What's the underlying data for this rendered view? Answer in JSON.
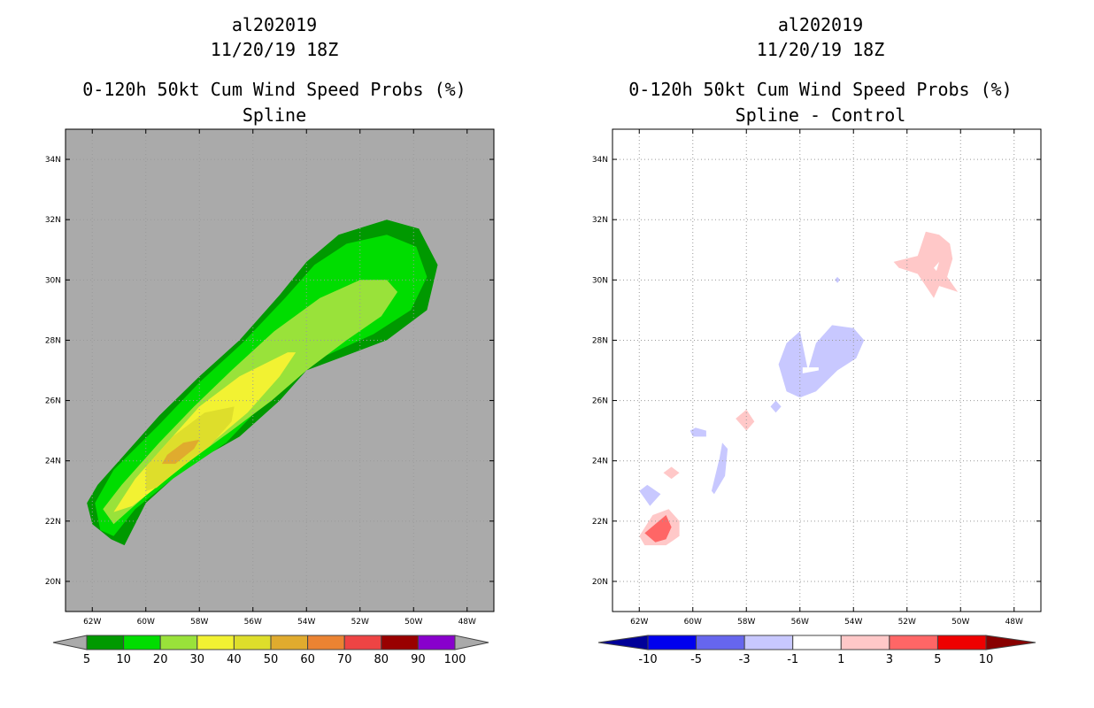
{
  "panels": [
    {
      "title_lines": [
        "al202019",
        "11/20/19 18Z",
        "0-120h 50kt Cum Wind Speed Probs (%)",
        "Spline"
      ],
      "background": "#aaaaaa"
    },
    {
      "title_lines": [
        "al202019",
        "11/20/19 18Z",
        "0-120h 50kt Cum Wind Speed Probs (%)",
        "Spline - Control"
      ],
      "background": "#ffffff"
    }
  ],
  "chart_data": [
    {
      "type": "heatmap",
      "title": "0-120h 50kt Cum Wind Speed Probs (%)",
      "subtitle": "Spline",
      "storm": "al202019",
      "datetime": "11/20/19 18Z",
      "xlim": [
        -63,
        -47
      ],
      "ylim": [
        19,
        35
      ],
      "x_ticks": [
        -62,
        -60,
        -58,
        -56,
        -54,
        -52,
        -50,
        -48
      ],
      "x_tick_labels": [
        "62W",
        "60W",
        "58W",
        "56W",
        "54W",
        "52W",
        "50W",
        "48W"
      ],
      "y_ticks": [
        20,
        22,
        24,
        26,
        28,
        30,
        32,
        34
      ],
      "y_tick_labels": [
        "20N",
        "22N",
        "24N",
        "26N",
        "28N",
        "30N",
        "32N",
        "34N"
      ],
      "grid": true,
      "colorbar": {
        "levels": [
          "5",
          "10",
          "20",
          "30",
          "40",
          "50",
          "60",
          "70",
          "80",
          "90",
          "100"
        ],
        "colors": [
          "#009900",
          "#00dd00",
          "#99e23a",
          "#f2f232",
          "#dede2b",
          "#e0ab2e",
          "#eb8332",
          "#ee4444",
          "#990000",
          "#8800cc"
        ],
        "under_color": "#aaaaaa",
        "over_color": "#aaaaaa"
      },
      "contours": [
        {
          "level": "5-10",
          "color": "#009900",
          "polygon": [
            [
              -62.2,
              22.6
            ],
            [
              -61.8,
              23.2
            ],
            [
              -61.0,
              24.0
            ],
            [
              -59.5,
              25.5
            ],
            [
              -58.0,
              26.8
            ],
            [
              -56.5,
              28.0
            ],
            [
              -55.0,
              29.5
            ],
            [
              -54.0,
              30.6
            ],
            [
              -52.8,
              31.5
            ],
            [
              -51.0,
              32.0
            ],
            [
              -49.8,
              31.7
            ],
            [
              -49.1,
              30.5
            ],
            [
              -49.5,
              29.0
            ],
            [
              -51.0,
              28.0
            ],
            [
              -52.5,
              27.5
            ],
            [
              -54.0,
              27.0
            ],
            [
              -55.0,
              26.0
            ],
            [
              -56.5,
              24.8
            ],
            [
              -58.5,
              23.8
            ],
            [
              -60.0,
              22.6
            ],
            [
              -60.8,
              21.2
            ],
            [
              -61.3,
              21.4
            ],
            [
              -62.0,
              21.9
            ]
          ]
        },
        {
          "level": "10-20",
          "color": "#00dd00",
          "polygon": [
            [
              -61.9,
              22.6
            ],
            [
              -61.2,
              23.7
            ],
            [
              -59.5,
              25.2
            ],
            [
              -58.0,
              26.6
            ],
            [
              -56.4,
              27.9
            ],
            [
              -54.8,
              29.4
            ],
            [
              -53.7,
              30.5
            ],
            [
              -52.5,
              31.2
            ],
            [
              -51.0,
              31.5
            ],
            [
              -49.9,
              31.1
            ],
            [
              -49.5,
              30.1
            ],
            [
              -50.1,
              29.0
            ],
            [
              -51.5,
              28.2
            ],
            [
              -53.0,
              27.6
            ],
            [
              -54.5,
              27.0
            ],
            [
              -55.5,
              26.0
            ],
            [
              -57.0,
              24.6
            ],
            [
              -59.0,
              23.4
            ],
            [
              -60.4,
              22.4
            ],
            [
              -61.2,
              21.5
            ],
            [
              -61.7,
              21.7
            ]
          ]
        },
        {
          "level": "20-30",
          "color": "#99e23a",
          "polygon": [
            [
              -61.6,
              22.4
            ],
            [
              -60.9,
              23.2
            ],
            [
              -59.5,
              24.6
            ],
            [
              -58.2,
              25.8
            ],
            [
              -56.8,
              27.0
            ],
            [
              -55.2,
              28.3
            ],
            [
              -53.5,
              29.4
            ],
            [
              -52.0,
              30.0
            ],
            [
              -51.0,
              30.0
            ],
            [
              -50.6,
              29.6
            ],
            [
              -51.2,
              28.8
            ],
            [
              -52.5,
              28.0
            ],
            [
              -54.0,
              27.0
            ],
            [
              -55.3,
              26.0
            ],
            [
              -56.8,
              25.0
            ],
            [
              -58.5,
              23.9
            ],
            [
              -59.8,
              23.0
            ],
            [
              -60.7,
              22.3
            ],
            [
              -61.2,
              21.9
            ]
          ]
        },
        {
          "level": "30-40",
          "color": "#f2f232",
          "polygon": [
            [
              -61.2,
              22.3
            ],
            [
              -60.4,
              23.4
            ],
            [
              -59.2,
              24.6
            ],
            [
              -58.0,
              25.8
            ],
            [
              -56.5,
              26.8
            ],
            [
              -54.7,
              27.6
            ],
            [
              -54.4,
              27.6
            ],
            [
              -55.0,
              26.8
            ],
            [
              -56.2,
              25.6
            ],
            [
              -57.8,
              24.4
            ],
            [
              -59.2,
              23.4
            ],
            [
              -60.5,
              22.5
            ]
          ]
        },
        {
          "level": "40-50",
          "color": "#dede2b",
          "polygon": [
            [
              -60.0,
              23.0
            ],
            [
              -60.0,
              23.8
            ],
            [
              -59.0,
              24.8
            ],
            [
              -57.8,
              25.6
            ],
            [
              -56.7,
              25.8
            ],
            [
              -56.8,
              25.3
            ],
            [
              -57.6,
              24.5
            ],
            [
              -58.8,
              23.7
            ],
            [
              -59.6,
              23.1
            ]
          ]
        },
        {
          "level": "50-60",
          "color": "#e0ab2e",
          "polygon": [
            [
              -59.4,
              23.9
            ],
            [
              -59.2,
              24.2
            ],
            [
              -58.6,
              24.6
            ],
            [
              -58.0,
              24.7
            ],
            [
              -58.2,
              24.4
            ],
            [
              -58.9,
              23.9
            ]
          ]
        }
      ]
    },
    {
      "type": "heatmap",
      "title": "0-120h 50kt Cum Wind Speed Probs (%)",
      "subtitle": "Spline - Control",
      "storm": "al202019",
      "datetime": "11/20/19 18Z",
      "xlim": [
        -63,
        -47
      ],
      "ylim": [
        19,
        35
      ],
      "x_ticks": [
        -62,
        -60,
        -58,
        -56,
        -54,
        -52,
        -50,
        -48
      ],
      "x_tick_labels": [
        "62W",
        "60W",
        "58W",
        "56W",
        "54W",
        "52W",
        "50W",
        "48W"
      ],
      "y_ticks": [
        20,
        22,
        24,
        26,
        28,
        30,
        32,
        34
      ],
      "y_tick_labels": [
        "20N",
        "22N",
        "24N",
        "26N",
        "28N",
        "30N",
        "32N",
        "34N"
      ],
      "grid": true,
      "colorbar": {
        "levels": [
          "-10",
          "-5",
          "-3",
          "-1",
          "1",
          "3",
          "5",
          "10"
        ],
        "colors": [
          "#0000ee",
          "#6666ee",
          "#c8c8ff",
          "#ffffff",
          "#ffc8c8",
          "#ff6666",
          "#ee0000"
        ],
        "under_color": "#000099",
        "over_color": "#880000"
      },
      "contours": [
        {
          "level": "1-3",
          "color": "#ffc8c8",
          "polygon": [
            [
              -62.0,
              21.5
            ],
            [
              -61.5,
              22.2
            ],
            [
              -60.9,
              22.4
            ],
            [
              -60.5,
              22.0
            ],
            [
              -60.5,
              21.5
            ],
            [
              -61.0,
              21.2
            ],
            [
              -61.8,
              21.2
            ]
          ]
        },
        {
          "level": "3-5",
          "color": "#ff6666",
          "polygon": [
            [
              -61.8,
              21.6
            ],
            [
              -61.0,
              22.2
            ],
            [
              -60.8,
              21.8
            ],
            [
              -61.0,
              21.4
            ],
            [
              -61.4,
              21.3
            ]
          ]
        },
        {
          "level": "-3--1",
          "color": "#c8c8ff",
          "polygon": [
            [
              -62.0,
              23.0
            ],
            [
              -61.7,
              23.2
            ],
            [
              -61.2,
              22.9
            ],
            [
              -61.6,
              22.5
            ]
          ]
        },
        {
          "level": "1-3",
          "color": "#ffc8c8",
          "polygon": [
            [
              -61.1,
              23.6
            ],
            [
              -60.8,
              23.8
            ],
            [
              -60.5,
              23.6
            ],
            [
              -60.8,
              23.4
            ]
          ]
        },
        {
          "level": "-3--1",
          "color": "#c8c8ff",
          "polygon": [
            [
              -60.1,
              25.0
            ],
            [
              -59.9,
              25.1
            ],
            [
              -59.5,
              25.0
            ],
            [
              -59.5,
              24.8
            ],
            [
              -60.0,
              24.8
            ]
          ]
        },
        {
          "level": "-3--1",
          "color": "#c8c8ff",
          "polygon": [
            [
              -59.3,
              23.0
            ],
            [
              -59.0,
              24.1
            ],
            [
              -58.9,
              24.6
            ],
            [
              -58.7,
              24.4
            ],
            [
              -58.8,
              23.5
            ],
            [
              -59.2,
              22.9
            ]
          ]
        },
        {
          "level": "1-3",
          "color": "#ffc8c8",
          "polygon": [
            [
              -58.4,
              25.4
            ],
            [
              -58.0,
              25.7
            ],
            [
              -57.7,
              25.3
            ],
            [
              -58.0,
              25.0
            ]
          ]
        },
        {
          "level": "-3--1",
          "color": "#c8c8ff",
          "polygon": [
            [
              -57.1,
              25.8
            ],
            [
              -56.9,
              26.0
            ],
            [
              -56.7,
              25.8
            ],
            [
              -56.9,
              25.6
            ]
          ]
        },
        {
          "level": "-3--1",
          "color": "#c8c8ff",
          "polygon": [
            [
              -55.7,
              27.0
            ],
            [
              -55.4,
              27.9
            ],
            [
              -54.8,
              28.5
            ],
            [
              -54.0,
              28.4
            ],
            [
              -53.6,
              28.0
            ],
            [
              -53.9,
              27.4
            ],
            [
              -54.6,
              27.0
            ],
            [
              -55.4,
              26.3
            ],
            [
              -56.0,
              26.1
            ],
            [
              -56.5,
              26.3
            ],
            [
              -56.8,
              27.2
            ],
            [
              -56.5,
              27.9
            ],
            [
              -56.0,
              28.3
            ]
          ]
        },
        {
          "level": "-3--1",
          "color": "#c8c8ff",
          "polygon": [
            [
              -54.6,
              30.1
            ],
            [
              -54.5,
              30.0
            ],
            [
              -54.6,
              29.9
            ],
            [
              -54.7,
              30.0
            ]
          ]
        },
        {
          "level": "1-3",
          "color": "#ffc8c8",
          "polygon": [
            [
              -52.5,
              30.6
            ],
            [
              -51.6,
              30.8
            ],
            [
              -51.3,
              31.6
            ],
            [
              -50.8,
              31.5
            ],
            [
              -50.4,
              31.2
            ],
            [
              -50.3,
              30.7
            ],
            [
              -50.5,
              30.1
            ],
            [
              -50.1,
              29.6
            ],
            [
              -50.8,
              29.8
            ],
            [
              -51.0,
              29.4
            ],
            [
              -51.6,
              30.2
            ],
            [
              -52.3,
              30.4
            ]
          ]
        }
      ],
      "holes": [
        {
          "level": "-1-1",
          "polygon": [
            [
              -55.9,
              26.9
            ],
            [
              -55.3,
              27.0
            ],
            [
              -55.3,
              27.1
            ],
            [
              -55.9,
              27.1
            ]
          ]
        },
        {
          "level": "-1-1",
          "polygon": [
            [
              -51.0,
              30.4
            ],
            [
              -50.8,
              30.6
            ],
            [
              -50.9,
              30.3
            ]
          ]
        }
      ]
    }
  ]
}
